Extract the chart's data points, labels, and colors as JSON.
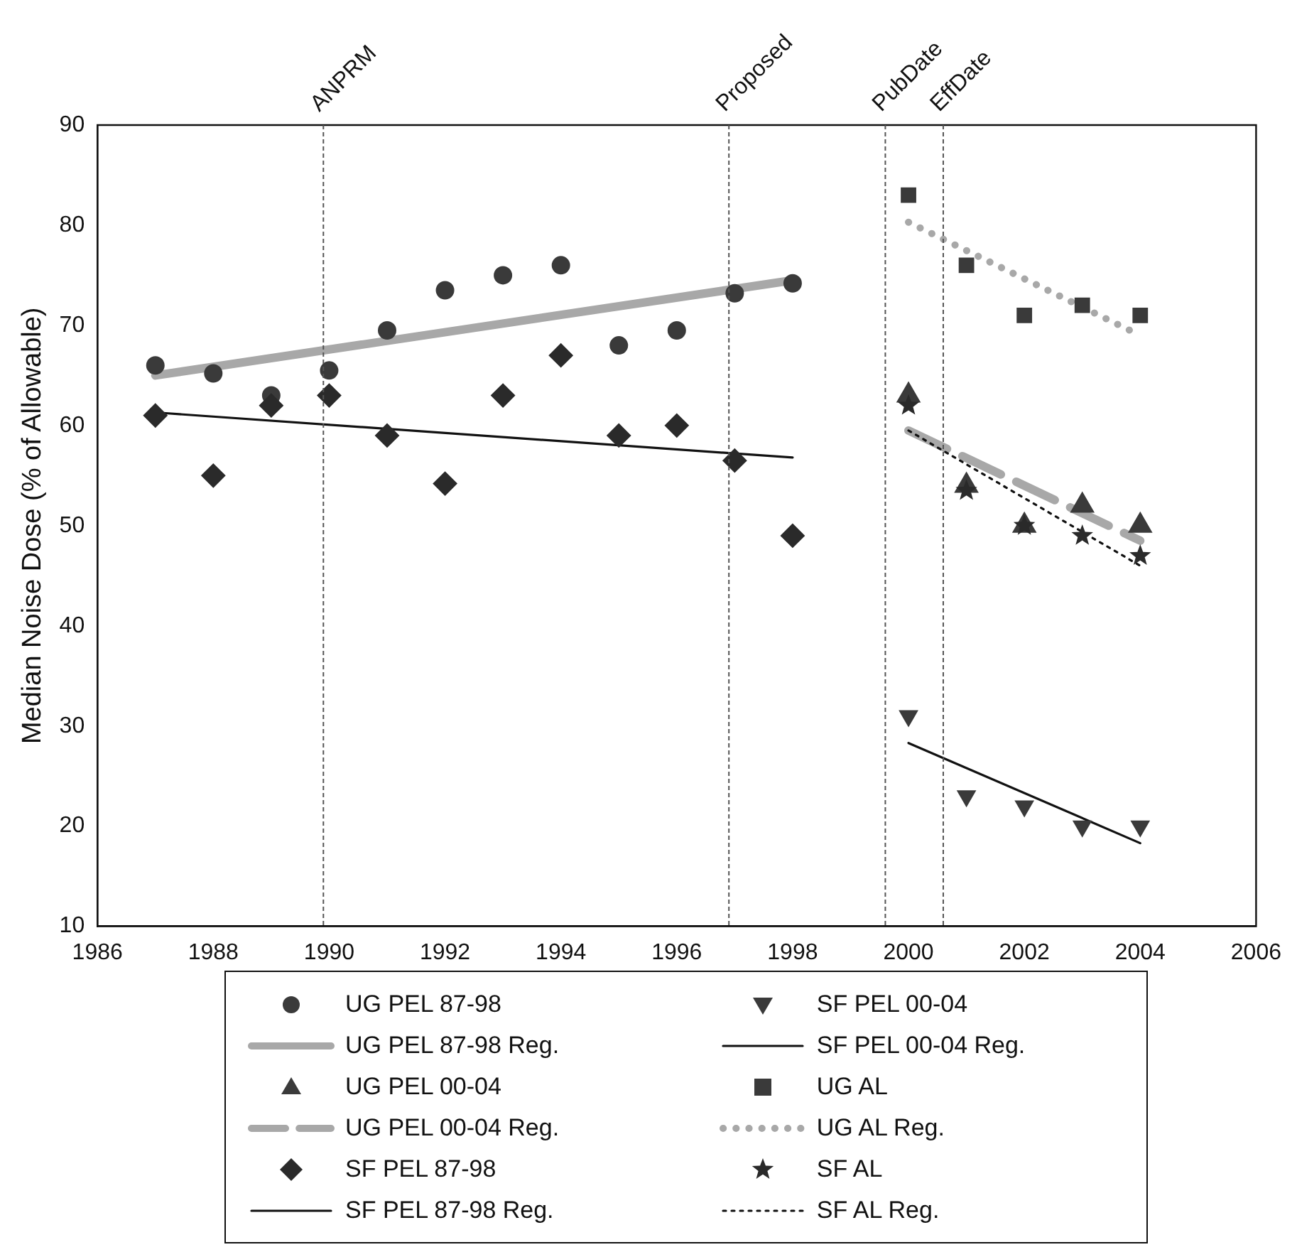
{
  "chart_data": {
    "type": "scatter",
    "ylabel": "Median Noise Dose (% of Allowable)",
    "xlim": [
      1986,
      2006
    ],
    "xticks": [
      1986,
      1988,
      1990,
      1992,
      1994,
      1996,
      1998,
      2000,
      2002,
      2004,
      2006
    ],
    "ylim": [
      10,
      90
    ],
    "yticks": [
      10,
      20,
      30,
      40,
      50,
      60,
      70,
      80,
      90
    ],
    "grid": false,
    "legend": "bottom",
    "ref_lines": [
      {
        "axis": "x",
        "value": 1989.9,
        "label": "ANPRM",
        "color": "#555555",
        "line_style": "dashed"
      },
      {
        "axis": "x",
        "value": 1996.9,
        "label": "Proposed",
        "color": "#555555",
        "line_style": "dashed"
      },
      {
        "axis": "x",
        "value": 1999.6,
        "label": "PubDate",
        "color": "#555555",
        "line_style": "dashed"
      },
      {
        "axis": "x",
        "value": 2000.6,
        "label": "EffDate",
        "color": "#555555",
        "line_style": "dashed"
      }
    ],
    "series": [
      {
        "name": "UG PEL 87-98",
        "type": "scatter",
        "marker": "circle",
        "color": "#3a3a3a",
        "x": [
          1987,
          1988,
          1989,
          1990,
          1991,
          1992,
          1993,
          1994,
          1995,
          1996,
          1997,
          1998
        ],
        "values": [
          66,
          65.2,
          63,
          65.5,
          69.5,
          73.5,
          75,
          76,
          68,
          69.5,
          73.2,
          74.2
        ]
      },
      {
        "name": "UG PEL 87-98 Reg.",
        "type": "line",
        "line_style": "solid",
        "color": "#a8a8a8",
        "x": [
          1987,
          1998
        ],
        "values": [
          65,
          74.5
        ]
      },
      {
        "name": "UG PEL 00-04",
        "type": "scatter",
        "marker": "triangle",
        "color": "#3a3a3a",
        "x": [
          2000,
          2001,
          2002,
          2003,
          2004
        ],
        "values": [
          63,
          54,
          50,
          52,
          50
        ]
      },
      {
        "name": "UG PEL 00-04 Reg.",
        "type": "line",
        "line_style": "dashed",
        "color": "#a8a8a8",
        "x": [
          2000,
          2004
        ],
        "values": [
          59.5,
          48.5
        ]
      },
      {
        "name": "SF PEL 87-98",
        "type": "scatter",
        "marker": "diamond",
        "color": "#2a2a2a",
        "x": [
          1987,
          1988,
          1989,
          1990,
          1991,
          1992,
          1993,
          1994,
          1995,
          1996,
          1997,
          1998
        ],
        "values": [
          61,
          55,
          62,
          63,
          59,
          54.2,
          63,
          67,
          59,
          60,
          56.5,
          49
        ]
      },
      {
        "name": "SF PEL 87-98 Reg.",
        "type": "line",
        "line_style": "solid",
        "color": "#111111",
        "x": [
          1987,
          1998
        ],
        "values": [
          61.3,
          56.8
        ]
      },
      {
        "name": "SF PEL 00-04",
        "type": "scatter",
        "marker": "triangle-down",
        "color": "#3a3a3a",
        "x": [
          2000,
          2001,
          2002,
          2003,
          2004
        ],
        "values": [
          31,
          23,
          22,
          20,
          20
        ]
      },
      {
        "name": "SF PEL 00-04 Reg.",
        "type": "line",
        "line_style": "solid",
        "color": "#111111",
        "x": [
          2000,
          2004
        ],
        "values": [
          28.3,
          18.3
        ]
      },
      {
        "name": "UG AL",
        "type": "scatter",
        "marker": "square",
        "color": "#3a3a3a",
        "x": [
          2000,
          2001,
          2002,
          2003,
          2004
        ],
        "values": [
          83,
          76,
          71,
          72,
          71
        ]
      },
      {
        "name": "UG AL Reg.",
        "type": "line",
        "line_style": "dotted",
        "color": "#a8a8a8",
        "x": [
          2000,
          2004
        ],
        "values": [
          80.3,
          69
        ]
      },
      {
        "name": "SF AL",
        "type": "scatter",
        "marker": "star",
        "color": "#2a2a2a",
        "x": [
          2000,
          2001,
          2002,
          2003,
          2004
        ],
        "values": [
          62,
          53.5,
          50,
          49,
          47
        ]
      },
      {
        "name": "SF AL Reg.",
        "type": "line",
        "line_style": "dotted",
        "color": "#111111",
        "x": [
          2000,
          2004
        ],
        "values": [
          59.5,
          46
        ]
      }
    ]
  }
}
